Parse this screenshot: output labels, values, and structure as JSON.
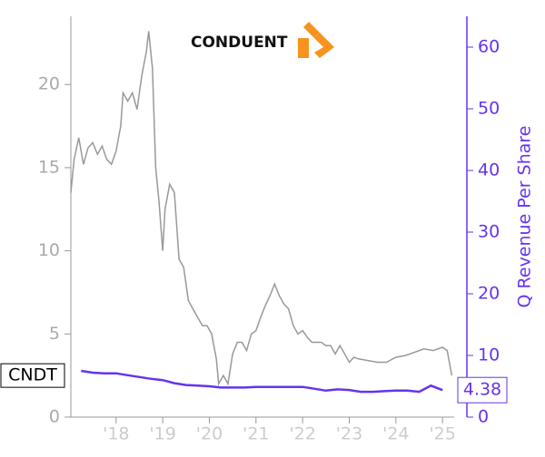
{
  "chart_data": {
    "type": "line",
    "logo_text": "CONDUENT",
    "y2label": "Q Revenue Per Share",
    "xlim": [
      2017.03,
      2025.25
    ],
    "xticks": [
      {
        "value": 2018,
        "label": "'18"
      },
      {
        "value": 2019,
        "label": "'19"
      },
      {
        "value": 2020,
        "label": "'20"
      },
      {
        "value": 2021,
        "label": "'21"
      },
      {
        "value": 2022,
        "label": "'22"
      },
      {
        "value": 2023,
        "label": "'23"
      },
      {
        "value": 2024,
        "label": "'24"
      },
      {
        "value": 2025,
        "label": "'25"
      }
    ],
    "ylim": [
      0,
      24.1
    ],
    "yticks": [
      0,
      5,
      10,
      15,
      20
    ],
    "y2lim": [
      0,
      65
    ],
    "y2ticks": [
      0,
      10,
      20,
      30,
      40,
      50,
      60
    ],
    "grid": false,
    "series": [
      {
        "name": "CNDT",
        "color": "#999999",
        "x": [
          2017.03,
          2017.1,
          2017.2,
          2017.3,
          2017.4,
          2017.5,
          2017.6,
          2017.7,
          2017.8,
          2017.9,
          2018.0,
          2018.1,
          2018.15,
          2018.25,
          2018.35,
          2018.45,
          2018.55,
          2018.65,
          2018.7,
          2018.78,
          2018.85,
          2018.92,
          2019.0,
          2019.05,
          2019.15,
          2019.25,
          2019.35,
          2019.45,
          2019.55,
          2019.65,
          2019.75,
          2019.85,
          2019.95,
          2020.05,
          2020.15,
          2020.2,
          2020.3,
          2020.4,
          2020.5,
          2020.6,
          2020.7,
          2020.8,
          2020.9,
          2021.0,
          2021.1,
          2021.2,
          2021.3,
          2021.4,
          2021.5,
          2021.6,
          2021.7,
          2021.8,
          2021.9,
          2022.0,
          2022.1,
          2022.2,
          2022.3,
          2022.4,
          2022.5,
          2022.6,
          2022.7,
          2022.8,
          2022.9,
          2023.0,
          2023.1,
          2023.2,
          2023.4,
          2023.6,
          2023.8,
          2024.0,
          2024.2,
          2024.4,
          2024.6,
          2024.8,
          2025.0,
          2025.1,
          2025.2
        ],
        "values": [
          13.5,
          15.5,
          16.8,
          15.2,
          16.2,
          16.5,
          15.8,
          16.3,
          15.5,
          15.2,
          16.0,
          17.5,
          19.5,
          19.0,
          19.5,
          18.5,
          20.5,
          22.0,
          23.2,
          21.0,
          15.0,
          13.0,
          10.0,
          12.5,
          14.0,
          13.5,
          9.5,
          9.0,
          7.0,
          6.5,
          6.0,
          5.5,
          5.5,
          5.0,
          3.5,
          2.0,
          2.5,
          2.0,
          3.8,
          4.5,
          4.5,
          4.0,
          5.0,
          5.2,
          6.0,
          6.7,
          7.3,
          8.0,
          7.3,
          6.8,
          6.5,
          5.5,
          5.0,
          5.2,
          4.8,
          4.5,
          4.5,
          4.5,
          4.3,
          4.3,
          3.8,
          4.3,
          3.8,
          3.3,
          3.6,
          3.5,
          3.4,
          3.3,
          3.3,
          3.6,
          3.7,
          3.9,
          4.1,
          4.0,
          4.2,
          4.0,
          2.5
        ]
      },
      {
        "name": "Q Revenue Per Share",
        "color": "#6633ee",
        "axis": "y2",
        "x": [
          2017.25,
          2017.5,
          2017.75,
          2018.0,
          2018.25,
          2018.5,
          2018.75,
          2019.0,
          2019.25,
          2019.5,
          2019.75,
          2020.0,
          2020.25,
          2020.5,
          2020.75,
          2021.0,
          2021.25,
          2021.5,
          2021.75,
          2022.0,
          2022.25,
          2022.5,
          2022.75,
          2023.0,
          2023.25,
          2023.5,
          2023.75,
          2024.0,
          2024.25,
          2024.5,
          2024.75,
          2025.0
        ],
        "values": [
          7.5,
          7.2,
          7.1,
          7.1,
          6.8,
          6.5,
          6.2,
          6.0,
          5.5,
          5.2,
          5.1,
          5.0,
          4.8,
          4.8,
          4.8,
          4.9,
          4.9,
          4.9,
          4.9,
          4.9,
          4.6,
          4.3,
          4.5,
          4.4,
          4.1,
          4.1,
          4.2,
          4.3,
          4.3,
          4.1,
          5.1,
          4.38
        ]
      }
    ]
  }
}
